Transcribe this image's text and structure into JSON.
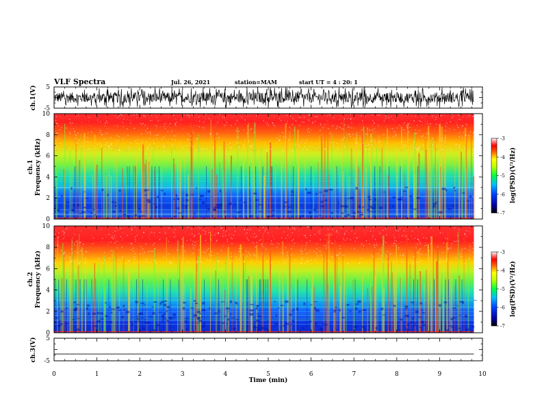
{
  "header": {
    "title": "VLF Spectra",
    "date": "Jul. 26, 2021",
    "station": "station=MAM",
    "start": "start UT = 4 : 20: 1"
  },
  "chart_data": [
    {
      "type": "line",
      "panel": "ch1-waveform",
      "ylabel": "ch.1(V)",
      "ylim": [
        -5,
        5
      ],
      "yticks": [
        "5",
        "-5"
      ],
      "description_values": {
        "typical_range_V": [
          -2.5,
          2.5
        ]
      }
    },
    {
      "type": "heatmap",
      "panel": "ch1-spectrogram",
      "ylabel": "ch.1\nFrequency (kHz)",
      "ylabel_top": "ch.1",
      "ylabel_bottom": "Frequency (kHz)",
      "ylim": [
        0,
        10
      ],
      "yticks": [
        "0",
        "2",
        "4",
        "6",
        "8",
        "10"
      ],
      "colorbar": {
        "label": "log(PSD)(V²/Hz)",
        "range": [
          -7,
          -3
        ],
        "ticks": [
          "-3",
          "-4",
          "-5",
          "-6",
          "-7"
        ],
        "colors": [
          "#000080",
          "#0000ff",
          "#0080ff",
          "#00ffff",
          "#00ff00",
          "#ffff00",
          "#ff8000",
          "#ff0000",
          "#ffc0c0",
          "#ffffff"
        ]
      }
    },
    {
      "type": "heatmap",
      "panel": "ch2-spectrogram",
      "ylabel": "ch.2\nFrequency (kHz)",
      "ylabel_top": "ch.2",
      "ylabel_bottom": "Frequency (kHz)",
      "ylim": [
        0,
        10
      ],
      "yticks": [
        "0",
        "2",
        "4",
        "6",
        "8",
        "10"
      ],
      "colorbar": {
        "label": "log(PSD)(V²/Hz)",
        "range": [
          -7,
          -3
        ],
        "ticks": [
          "-3",
          "-4",
          "-5",
          "-6",
          "-7"
        ]
      }
    },
    {
      "type": "line",
      "panel": "ch3-waveform",
      "ylabel": "ch.3(V)",
      "ylim": [
        -5,
        5
      ],
      "yticks": [
        "5",
        "-5"
      ],
      "values_constant_V": -2
    }
  ],
  "xaxis": {
    "label": "Time (min)",
    "range": [
      0,
      10
    ],
    "ticks": [
      "0",
      "1",
      "2",
      "3",
      "4",
      "5",
      "6",
      "7",
      "8",
      "9",
      "10"
    ],
    "data_end_min": 9.8
  }
}
